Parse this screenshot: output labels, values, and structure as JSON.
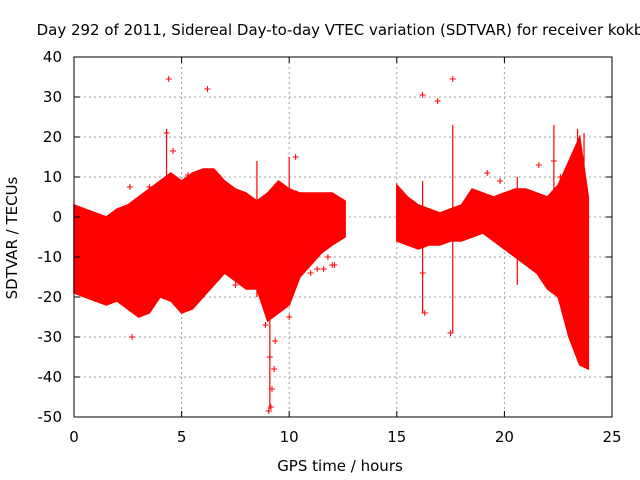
{
  "chart_data": {
    "type": "scatter",
    "title": "Day 292 of 2011, Sidereal Day-to-day VTEC variation (SDTVAR) for receiver kokb",
    "xlabel": "GPS time / hours",
    "ylabel": "SDTVAR / TECUs",
    "xlim": [
      0,
      25
    ],
    "ylim": [
      -50,
      40
    ],
    "xticks": [
      "0",
      "5",
      "10",
      "15",
      "20",
      "25"
    ],
    "yticks": [
      "-50",
      "-40",
      "-30",
      "-20",
      "-10",
      "0",
      "10",
      "20",
      "30",
      "40"
    ],
    "grid": true,
    "marker": "+",
    "series_color": "#ff0000",
    "envelope": {
      "description": "min/max band of the dense SDTVAR point cloud, in hours and TECU",
      "x": [
        0.0,
        0.5,
        1.0,
        1.5,
        2.0,
        2.5,
        3.0,
        3.5,
        4.0,
        4.5,
        5.0,
        5.5,
        6.0,
        6.5,
        7.0,
        7.5,
        8.0,
        8.5,
        9.0,
        9.5,
        10.0,
        10.5,
        11.0,
        11.5,
        12.0,
        12.6
      ],
      "ymax": [
        3,
        2,
        1,
        0,
        2,
        3,
        5,
        7,
        9,
        11,
        9,
        11,
        12,
        12,
        9,
        7,
        6,
        4,
        6,
        9,
        7,
        6,
        6,
        6,
        6,
        4
      ],
      "ymin": [
        -19,
        -20,
        -21,
        -22,
        -21,
        -23,
        -25,
        -24,
        -20,
        -21,
        -24,
        -23,
        -20,
        -17,
        -14,
        -16,
        -18,
        -18,
        -26,
        -24,
        -22,
        -15,
        -12,
        -9,
        -7,
        -5
      ]
    },
    "envelope2": {
      "x": [
        15.0,
        15.5,
        16.0,
        16.5,
        17.0,
        17.5,
        18.0,
        18.5,
        19.0,
        19.5,
        20.0,
        20.5,
        21.0,
        21.5,
        22.0,
        22.5,
        23.0,
        23.5,
        23.9
      ],
      "ymax": [
        8,
        5,
        3,
        2,
        1,
        2,
        3,
        7,
        6,
        5,
        6,
        7,
        7,
        6,
        5,
        8,
        14,
        20,
        5
      ],
      "ymin": [
        -6,
        -7,
        -8,
        -7,
        -7,
        -6,
        -6,
        -5,
        -4,
        -6,
        -8,
        -10,
        -12,
        -14,
        -18,
        -20,
        -30,
        -37,
        -38
      ]
    },
    "outliers": {
      "description": "isolated points and spikes outside the dense band",
      "x": [
        4.4,
        6.2,
        2.7,
        2.6,
        3.5,
        4.6,
        5.3,
        7.5,
        9.05,
        9.15,
        9.2,
        9.3,
        9.35,
        8.9,
        9.1,
        11.0,
        11.3,
        11.6,
        12.0,
        16.2,
        16.9,
        17.6,
        17.5,
        16.3,
        16.2,
        19.2,
        19.8,
        21.6,
        22.3,
        22.6,
        11.8,
        12.1,
        10.0,
        4.3,
        10.3
      ],
      "y": [
        34.5,
        32,
        -30,
        7.5,
        7.5,
        16.5,
        10.5,
        -17,
        -48.5,
        -47.5,
        -43,
        -38,
        -31,
        -27,
        -35,
        -14,
        -13,
        -13,
        -12,
        30.5,
        29,
        34.5,
        -29,
        -24,
        -14,
        11,
        9,
        13,
        14,
        10,
        -10,
        -12,
        -25,
        21,
        15
      ]
    },
    "spikes": {
      "description": "vertical error-bar style spikes (x, ylow, yhigh)",
      "x": [
        4.3,
        8.5,
        9.1,
        10.0,
        17.6,
        16.2,
        20.6,
        22.3,
        23.4,
        23.7
      ],
      "ylow": [
        -5,
        -20,
        -48,
        -22,
        -29,
        -24,
        -17,
        -8,
        -30,
        -35
      ],
      "yhigh": [
        22,
        14,
        5,
        15,
        23,
        9,
        10,
        23,
        22,
        21
      ]
    }
  }
}
